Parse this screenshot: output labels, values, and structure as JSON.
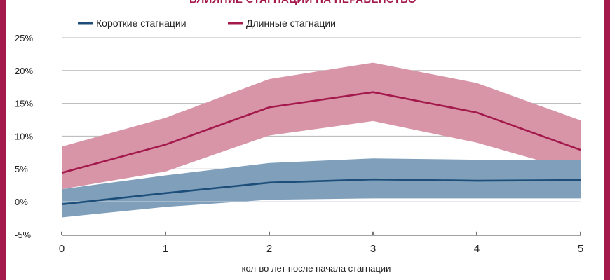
{
  "title": "ВЛИЯНИЕ СТАГНАЦИИ НА НЕРАВЕНСТВО*",
  "chart_data": {
    "type": "line",
    "title": "ВЛИЯНИЕ СТАГНАЦИИ НА НЕРАВЕНСТВО*",
    "xlabel": "кол-во лет после начала стагнации",
    "ylabel": "",
    "x": [
      0,
      1,
      2,
      3,
      4,
      5
    ],
    "x_tick_labels": [
      "0",
      "1",
      "2",
      "3",
      "4",
      "5"
    ],
    "y_tick_labels": [
      "25%",
      "20%",
      "15%",
      "10%",
      "5%",
      "0%",
      "-5%"
    ],
    "y_ticks": [
      25,
      20,
      15,
      10,
      5,
      0,
      -5
    ],
    "ylim": [
      -5,
      25
    ],
    "xlim": [
      0,
      5
    ],
    "grid": true,
    "legend_position": "top-left",
    "series": [
      {
        "name": "Короткие стагнации",
        "color": "#1d4e7a",
        "band_color": "#7f9fbb",
        "values": [
          -0.4,
          1.3,
          2.9,
          3.4,
          3.2,
          3.3
        ],
        "upper": [
          1.9,
          4.0,
          5.9,
          6.6,
          6.4,
          6.3
        ],
        "lower": [
          -2.4,
          -0.8,
          0.3,
          0.5,
          0.5,
          0.5
        ]
      },
      {
        "name": "Длинные стагнации",
        "color": "#a3194b",
        "band_color": "#d895a8",
        "values": [
          4.4,
          8.7,
          14.4,
          16.7,
          13.6,
          7.9
        ],
        "upper": [
          8.4,
          12.8,
          18.7,
          21.2,
          18.1,
          12.4
        ],
        "lower": [
          1.9,
          4.6,
          10.1,
          12.3,
          9.0,
          4.5
        ]
      }
    ]
  }
}
